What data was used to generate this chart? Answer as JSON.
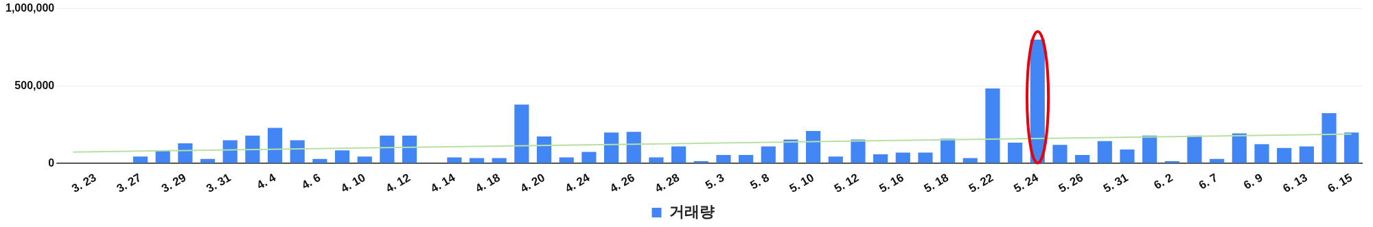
{
  "chart_data": {
    "type": "bar",
    "categories": [
      null,
      "3. 23",
      null,
      "3. 27",
      null,
      "3. 29",
      null,
      "3. 31",
      null,
      "4. 4",
      null,
      "4. 6",
      null,
      "4. 10",
      null,
      "4. 12",
      null,
      "4. 14",
      null,
      "4. 18",
      null,
      "4. 20",
      null,
      "4. 24",
      null,
      "4. 26",
      null,
      "4. 28",
      null,
      "5. 3",
      null,
      "5. 8",
      null,
      "5. 10",
      null,
      "5. 12",
      null,
      "5. 16",
      null,
      "5. 18",
      null,
      "5. 22",
      null,
      "5. 24",
      null,
      "5. 26",
      null,
      "5. 31",
      null,
      "6. 2",
      null,
      "6. 7",
      null,
      "6. 9",
      null,
      "6. 13",
      null,
      "6. 15"
    ],
    "series": [
      {
        "name": "거래량",
        "color": "#4285f4",
        "values": [
          0,
          0,
          0,
          45000,
          85000,
          130000,
          30000,
          150000,
          180000,
          230000,
          150000,
          30000,
          85000,
          45000,
          180000,
          180000,
          0,
          40000,
          35000,
          35000,
          380000,
          175000,
          40000,
          75000,
          200000,
          205000,
          40000,
          110000,
          15000,
          55000,
          55000,
          110000,
          155000,
          210000,
          45000,
          155000,
          60000,
          70000,
          70000,
          160000,
          35000,
          485000,
          135000,
          800000,
          120000,
          55000,
          145000,
          90000,
          180000,
          15000,
          180000,
          30000,
          195000,
          125000,
          100000,
          110000,
          325000,
          200000
        ]
      },
      {
        "type": "line",
        "color": "#b7e1a1",
        "values": [
          74000,
          null,
          null,
          null,
          null,
          null,
          null,
          null,
          null,
          null,
          null,
          null,
          null,
          null,
          null,
          null,
          null,
          null,
          null,
          null,
          null,
          null,
          null,
          null,
          null,
          null,
          null,
          null,
          null,
          null,
          null,
          null,
          null,
          null,
          null,
          null,
          null,
          null,
          null,
          null,
          null,
          null,
          null,
          null,
          null,
          null,
          null,
          null,
          null,
          null,
          null,
          null,
          null,
          null,
          null,
          null,
          null,
          190000
        ]
      }
    ],
    "ylim": [
      0,
      1000000
    ],
    "yticks": [
      0,
      {
        "value": 500000,
        "label": "500,000"
      },
      {
        "value": 1000000,
        "label": "1,000,000"
      }
    ],
    "grid": "y",
    "legend": "bottom"
  }
}
